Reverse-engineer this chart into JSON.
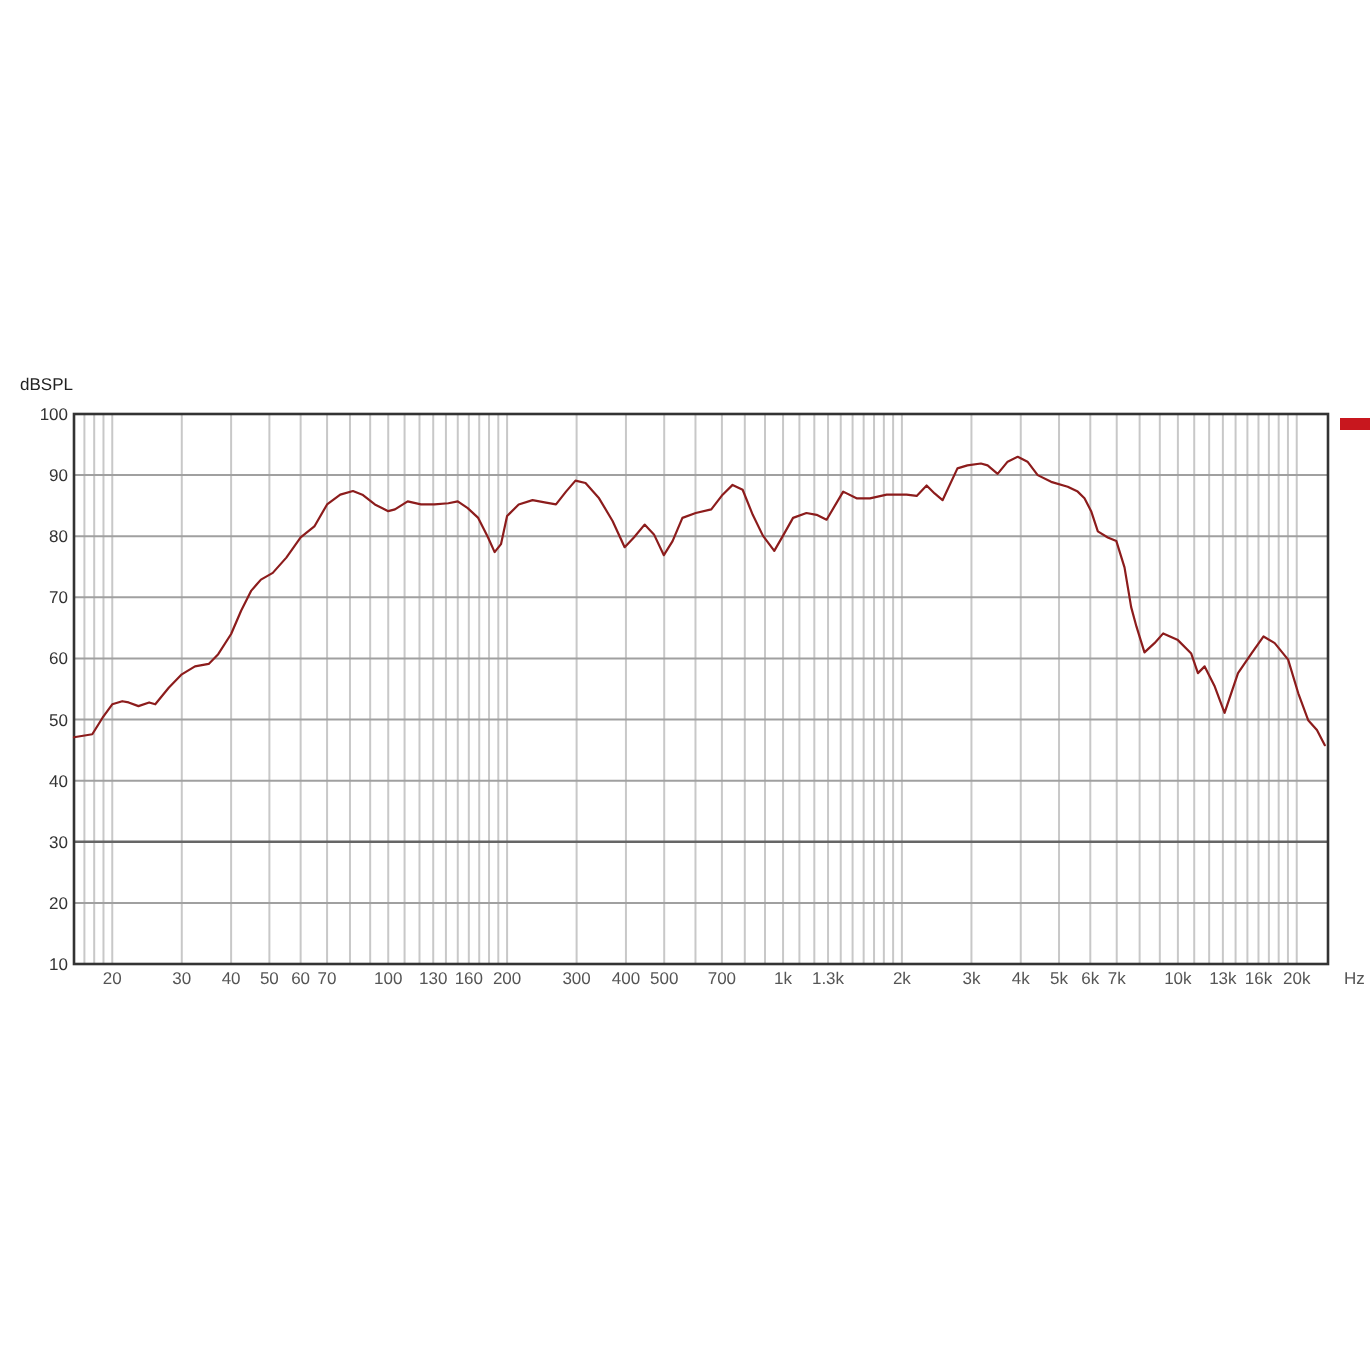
{
  "chart_data": {
    "type": "line",
    "xlabel": "Hz",
    "ylabel": "dBSPL",
    "log": "x",
    "grid": true,
    "xlim": [
      16,
      24000
    ],
    "ylim": [
      10,
      100
    ],
    "yticks": [
      10,
      20,
      30,
      40,
      50,
      60,
      70,
      80,
      90,
      100
    ],
    "xticks": [
      {
        "value": 17,
        "label": null
      },
      {
        "value": 18,
        "label": null
      },
      {
        "value": 19,
        "label": null
      },
      20,
      30,
      40,
      50,
      60,
      70,
      {
        "value": 80,
        "label": null
      },
      {
        "value": 90,
        "label": null
      },
      100,
      {
        "value": 110,
        "label": null
      },
      {
        "value": 120,
        "label": null
      },
      130,
      {
        "value": 140,
        "label": null
      },
      {
        "value": 150,
        "label": null
      },
      160,
      {
        "value": 170,
        "label": null
      },
      {
        "value": 180,
        "label": null
      },
      {
        "value": 190,
        "label": null
      },
      200,
      300,
      400,
      500,
      {
        "value": 600,
        "label": null
      },
      700,
      {
        "value": 800,
        "label": null
      },
      {
        "value": 900,
        "label": null
      },
      {
        "value": 1000,
        "label": "1k"
      },
      {
        "value": 1100,
        "label": null
      },
      {
        "value": 1200,
        "label": null
      },
      {
        "value": 1300,
        "label": "1.3k"
      },
      {
        "value": 1400,
        "label": null
      },
      {
        "value": 1500,
        "label": null
      },
      {
        "value": 1600,
        "label": null
      },
      {
        "value": 1700,
        "label": null
      },
      {
        "value": 1800,
        "label": null
      },
      {
        "value": 1900,
        "label": null
      },
      {
        "value": 2000,
        "label": "2k"
      },
      {
        "value": 3000,
        "label": "3k"
      },
      {
        "value": 4000,
        "label": "4k"
      },
      {
        "value": 5000,
        "label": "5k"
      },
      {
        "value": 6000,
        "label": "6k"
      },
      {
        "value": 7000,
        "label": "7k"
      },
      {
        "value": 8000,
        "label": null
      },
      {
        "value": 9000,
        "label": null
      },
      {
        "value": 10000,
        "label": "10k"
      },
      {
        "value": 11000,
        "label": null
      },
      {
        "value": 12000,
        "label": null
      },
      {
        "value": 13000,
        "label": "13k"
      },
      {
        "value": 14000,
        "label": null
      },
      {
        "value": 15000,
        "label": null
      },
      {
        "value": 16000,
        "label": "16k"
      },
      {
        "value": 17000,
        "label": null
      },
      {
        "value": 18000,
        "label": null
      },
      {
        "value": 19000,
        "label": null
      },
      {
        "value": 20000,
        "label": "20k"
      }
    ],
    "ref_lines": [
      {
        "axis": "y",
        "value": 30,
        "color": "#666666"
      }
    ],
    "series": [
      {
        "color": "#8c1c1c",
        "x": [
          16,
          17.8,
          18.9,
          20,
          21.2,
          22,
          23.3,
          24.8,
          25.7,
          27.8,
          30,
          32.4,
          35.1,
          37.1,
          40,
          42.4,
          45,
          47.6,
          51,
          55.2,
          60,
          65,
          70,
          75.6,
          81.4,
          86,
          92.5,
          100,
          104,
          112,
          121,
          131,
          142,
          150,
          159,
          169,
          179,
          186,
          193,
          200,
          214,
          232,
          251,
          266,
          282,
          298,
          316,
          342,
          370,
          397,
          419,
          446,
          471,
          499,
          525,
          556,
          601,
          658,
          703,
          745,
          790,
          838,
          889,
          950,
          1000,
          1060,
          1146,
          1216,
          1289,
          1420,
          1535,
          1660,
          1830,
          2055,
          2180,
          2310,
          2420,
          2535,
          2765,
          2930,
          3170,
          3297,
          3495,
          3705,
          3930,
          4160,
          4415,
          4775,
          5260,
          5575,
          5800,
          6030,
          6270,
          6645,
          6985,
          7325,
          7615,
          7855,
          8230,
          8725,
          9180,
          10000,
          10810,
          11240,
          11690,
          12400,
          13130,
          14200,
          15350,
          16480,
          17590,
          19020,
          20180,
          21380,
          22500,
          23560
        ],
        "values": [
          47.1,
          47.6,
          50.3,
          52.5,
          53,
          52.8,
          52.2,
          52.8,
          52.5,
          55.2,
          57.4,
          58.7,
          59.1,
          60.7,
          64,
          67.8,
          71.1,
          72.9,
          74,
          76.5,
          79.8,
          81.6,
          85.2,
          86.8,
          87.4,
          86.8,
          85.2,
          84.1,
          84.4,
          85.7,
          85.2,
          85.2,
          85.4,
          85.7,
          84.6,
          83,
          79.8,
          77.4,
          78.7,
          83.3,
          85.2,
          85.9,
          85.5,
          85.2,
          87.3,
          89.1,
          88.7,
          86.2,
          82.5,
          78.2,
          79.8,
          81.9,
          80.3,
          76.9,
          79.2,
          83,
          83.8,
          84.4,
          86.8,
          88.4,
          87.6,
          83.5,
          80.1,
          77.6,
          80.1,
          83,
          83.8,
          83.5,
          82.7,
          87.3,
          86.2,
          86.2,
          86.8,
          86.8,
          86.6,
          88.3,
          87,
          85.9,
          91.1,
          91.6,
          91.9,
          91.6,
          90.2,
          92.2,
          93,
          92.2,
          90,
          88.9,
          88.1,
          87.3,
          86.2,
          84.1,
          80.8,
          79.8,
          79.2,
          74.9,
          68.4,
          65.2,
          61,
          62.5,
          64.1,
          63,
          60.8,
          57.6,
          58.7,
          55.4,
          51.1,
          57.6,
          60.8,
          63.6,
          62.5,
          59.8,
          54.3,
          49.9,
          48.3,
          45.8
        ]
      }
    ]
  }
}
